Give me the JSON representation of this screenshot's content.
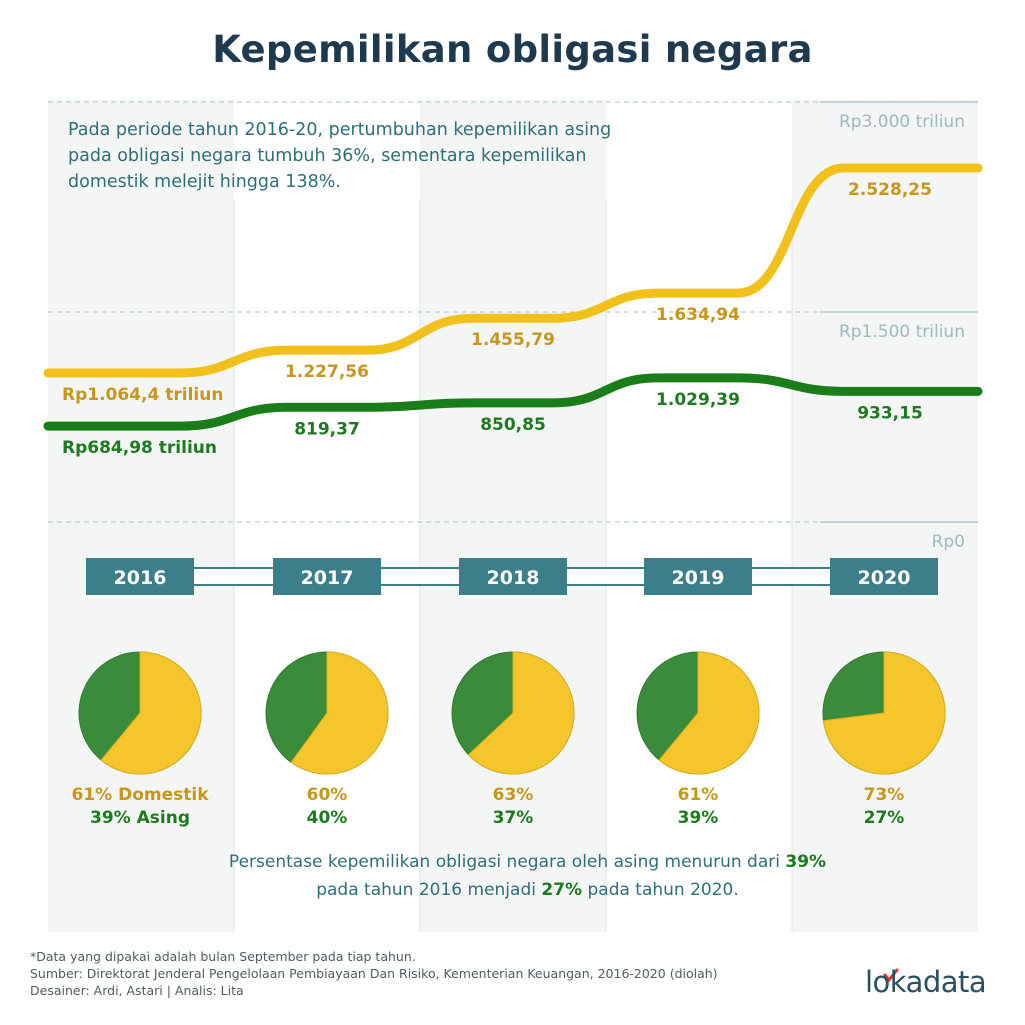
{
  "title": "Kepemilikan obligasi negara",
  "intro": "Pada periode tahun 2016-20, pertumbuhan kepemilikan asing pada obligasi negara tumbuh 36%, sementara kepemilikan domestik melejit hingga 138%.",
  "summary": {
    "text1": "Persentase kepemilikan obligasi negara oleh asing menurun dari ",
    "highlight1": "39%",
    "text2": "pada tahun 2016 menjadi ",
    "highlight2": "27%",
    "text3": " pada tahun 2020."
  },
  "footnotes": [
    "*Data yang dipakai adalah bulan September pada tiap tahun.",
    "Sumber: Direktorat Jenderal Pengelolaan Pembiayaan Dan Risiko, Kementerian Keuangan, 2016-2020 (diolah)",
    "Desainer: Ardi, Astari | Analis: Lita"
  ],
  "logo": {
    "text": "lokadata"
  },
  "colors": {
    "domestic": "#f2c01b",
    "foreign": "#1a7d1a",
    "domestic_label": "#c8961a",
    "foreign_label": "#1e7a1e",
    "year_box": "#3c7f8a",
    "pie_yellow": "#f4c62b",
    "pie_green": "#3a8c3a",
    "axis_text": "#9db8bf"
  },
  "chart_data": [
    {
      "type": "line",
      "title": "Kepemilikan obligasi negara",
      "categories": [
        "2016",
        "2017",
        "2018",
        "2019",
        "2020"
      ],
      "ylim": [
        0,
        3000
      ],
      "yticks": [
        0,
        1500,
        3000
      ],
      "ytick_labels": [
        "Rp0",
        "Rp1.500 triliun",
        "Rp3.000 triliun"
      ],
      "series": [
        {
          "name": "Domestik",
          "values": [
            1064.4,
            1227.56,
            1455.79,
            1634.94,
            2528.25
          ],
          "labels": [
            "Rp1.064,4 triliun",
            "1.227,56",
            "1.455,79",
            "1.634,94",
            "2.528,25"
          ]
        },
        {
          "name": "Asing",
          "values": [
            684.98,
            819.37,
            850.85,
            1029.39,
            933.15
          ],
          "labels": [
            "Rp684,98 triliun",
            "819,37",
            "850,85",
            "1.029,39",
            "933,15"
          ]
        }
      ]
    },
    {
      "type": "pie",
      "title": "Persentase kepemilikan",
      "categories": [
        "2016",
        "2017",
        "2018",
        "2019",
        "2020"
      ],
      "series": [
        {
          "name": "Domestik",
          "values": [
            61,
            60,
            63,
            61,
            73
          ],
          "labels": [
            "61% Domestik",
            "60%",
            "63%",
            "61%",
            "73%"
          ]
        },
        {
          "name": "Asing",
          "values": [
            39,
            40,
            37,
            39,
            27
          ],
          "labels": [
            "39% Asing",
            "40%",
            "37%",
            "39%",
            "27%"
          ]
        }
      ]
    }
  ]
}
